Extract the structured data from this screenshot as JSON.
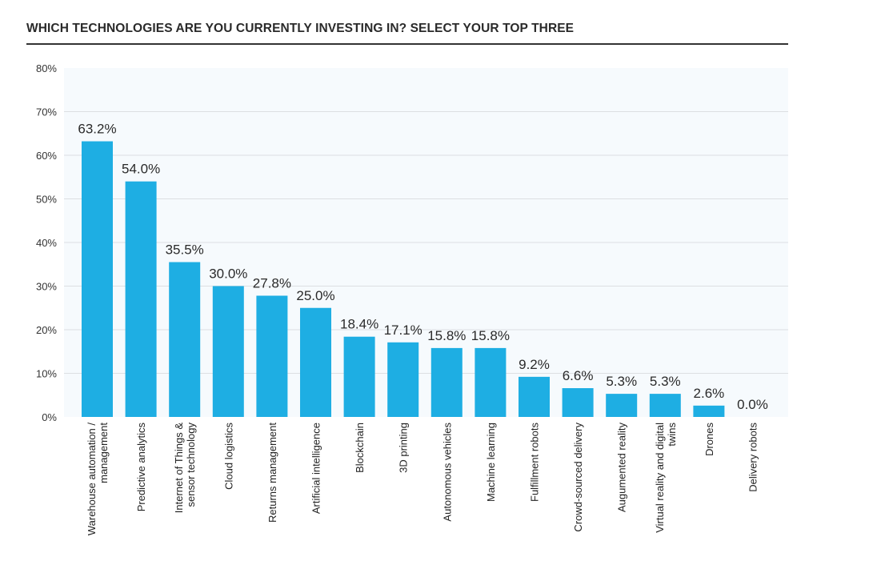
{
  "chart_data": {
    "type": "bar",
    "title": "WHICH TECHNOLOGIES ARE YOU CURRENTLY INVESTING IN? SELECT YOUR TOP THREE",
    "xlabel": "",
    "ylabel": "",
    "ylim": [
      0,
      80
    ],
    "yticks": [
      "0%",
      "10%",
      "20%",
      "30%",
      "40%",
      "50%",
      "60%",
      "70%",
      "80%"
    ],
    "grid": true,
    "categories": [
      [
        "Warehouse automation /",
        "management"
      ],
      [
        "Predictive analytics"
      ],
      [
        "Internet of Things &",
        "sensor technology"
      ],
      [
        "Cloud logistics"
      ],
      [
        "Returns management"
      ],
      [
        "Artificial intelligence"
      ],
      [
        "Blockchain"
      ],
      [
        "3D printing"
      ],
      [
        "Autonomous vehicles"
      ],
      [
        "Machine learning"
      ],
      [
        "Fulfillment robots"
      ],
      [
        "Crowd-sourced delivery"
      ],
      [
        "Augumented reality"
      ],
      [
        "Virtual reality and digital",
        "twins"
      ],
      [
        "Drones"
      ],
      [
        "Delivery robots"
      ]
    ],
    "values": [
      63.2,
      54.0,
      35.5,
      30.0,
      27.8,
      25.0,
      18.4,
      17.1,
      15.8,
      15.8,
      9.2,
      6.6,
      5.3,
      5.3,
      2.6,
      0.0
    ],
    "value_labels": [
      "63.2%",
      "54.0%",
      "35.5%",
      "30.0%",
      "27.8%",
      "25.0%",
      "18.4%",
      "17.1%",
      "15.8%",
      "15.8%",
      "9.2%",
      "6.6%",
      "5.3%",
      "5.3%",
      "2.6%",
      "0.0%"
    ],
    "bar_color": "#1eaee3"
  }
}
